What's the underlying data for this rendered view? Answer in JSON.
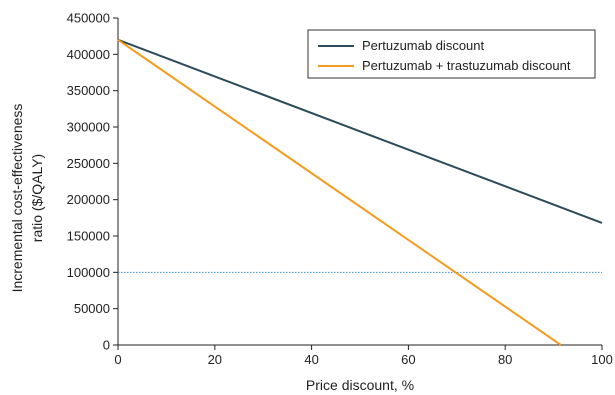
{
  "chart_data": {
    "type": "line",
    "xlabel": "Price discount, %",
    "ylabel_lines": [
      "Incremental cost-effectiveness",
      "ratio ($/QALY)"
    ],
    "xlim": [
      0,
      100
    ],
    "ylim": [
      0,
      450000
    ],
    "x_ticks": [
      0,
      20,
      40,
      60,
      80,
      100
    ],
    "y_ticks": [
      0,
      50000,
      100000,
      150000,
      200000,
      250000,
      300000,
      350000,
      400000,
      450000
    ],
    "x_tick_labels": [
      "0",
      "20",
      "40",
      "60",
      "80",
      "100"
    ],
    "y_tick_labels": [
      "0",
      "50000",
      "100000",
      "150000",
      "200000",
      "250000",
      "300000",
      "350000",
      "400000",
      "450000"
    ],
    "series": [
      {
        "name": "Pertuzumab discount",
        "color": "#2c4a5a",
        "x": [
          0,
          100
        ],
        "y": [
          420000,
          168000
        ]
      },
      {
        "name": "Pertuzumab + trastuzumab discount",
        "color": "#f39c1f",
        "x": [
          0,
          91.5
        ],
        "y": [
          420000,
          0
        ]
      }
    ],
    "reference_line": {
      "y": 100000,
      "color": "#3a8fd0",
      "style": "dotted"
    },
    "legend_position": "top-right",
    "grid": false
  }
}
